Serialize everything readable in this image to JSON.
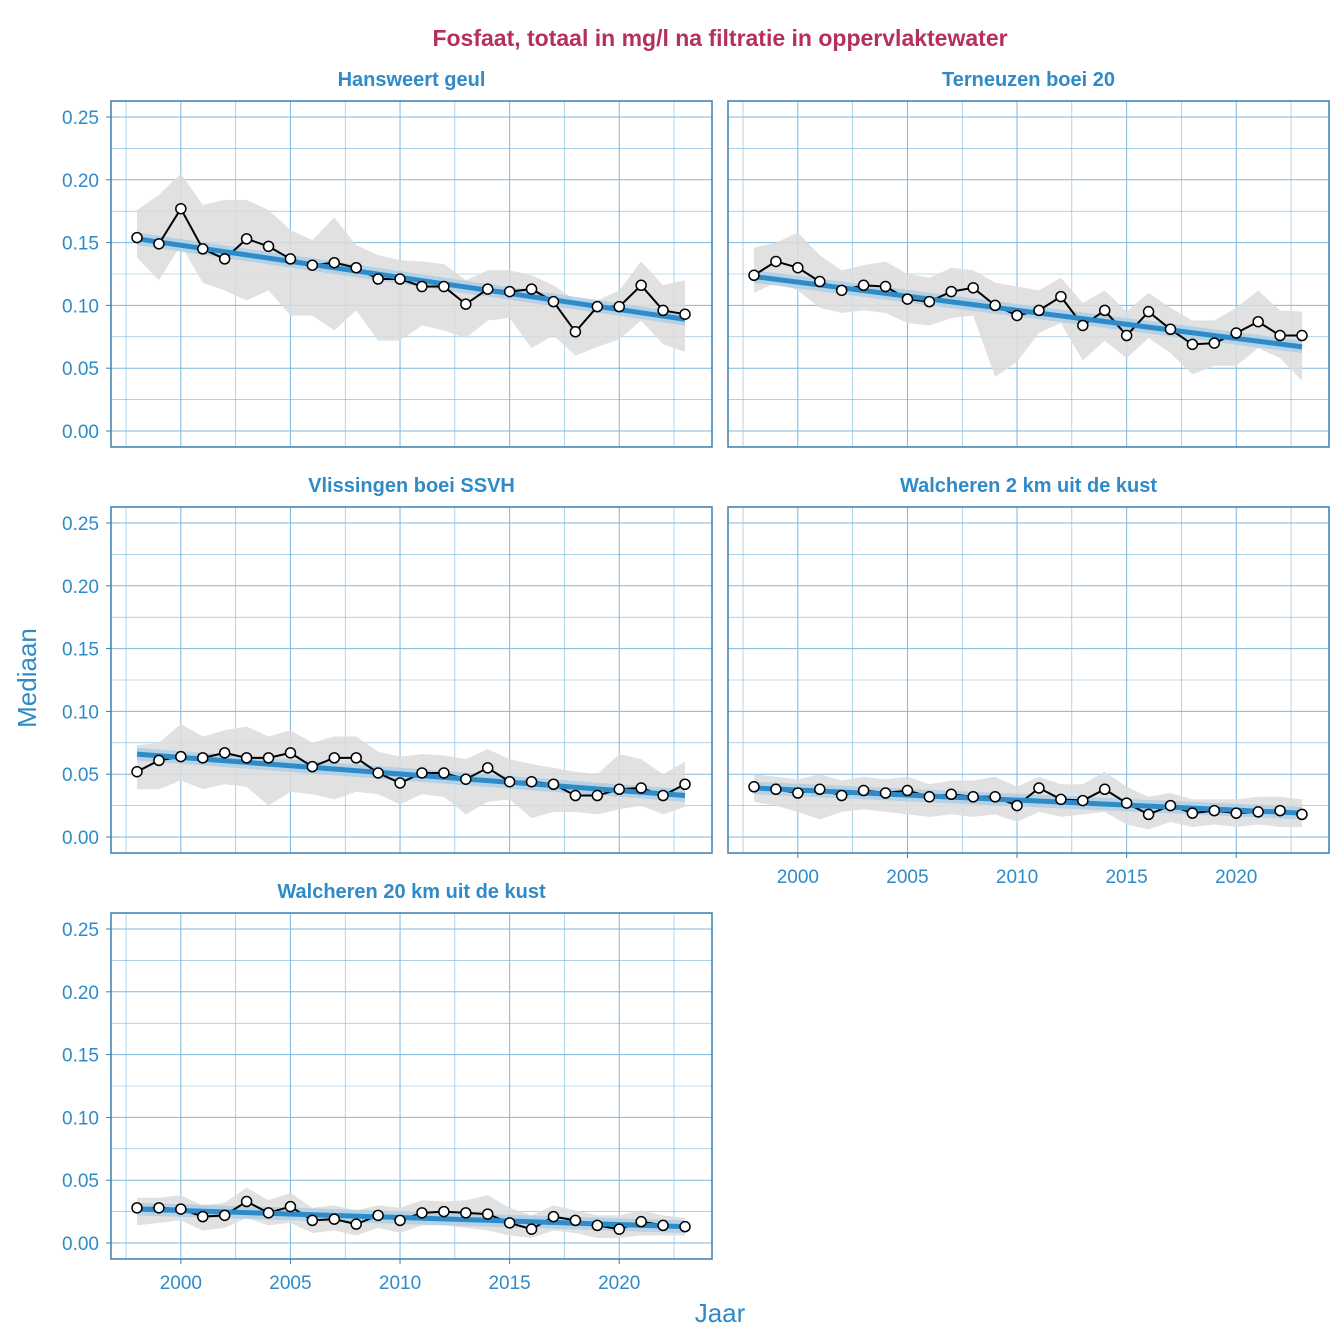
{
  "chart_data": {
    "type": "line",
    "title": "Fosfaat, totaal in mg/l na filtratie in oppervlaktewater",
    "xlabel": "Jaar",
    "ylabel": "Mediaan",
    "xlim": [
      1997,
      2024
    ],
    "ylim": [
      0,
      0.25
    ],
    "x_ticks": [
      2000,
      2005,
      2010,
      2015,
      2020
    ],
    "y_ticks": [
      "0.00",
      "0.05",
      "0.10",
      "0.15",
      "0.20",
      "0.25"
    ],
    "grid": true,
    "x": [
      1998,
      1999,
      2000,
      2001,
      2002,
      2003,
      2004,
      2005,
      2006,
      2007,
      2008,
      2009,
      2010,
      2011,
      2012,
      2013,
      2014,
      2015,
      2016,
      2017,
      2018,
      2019,
      2020,
      2021,
      2022,
      2023
    ],
    "colors": {
      "line": "#000000",
      "trend": "#2E8BC8",
      "ribbon": "#DCDCDC",
      "title": "#B5305A",
      "grid": "#7FB8DE"
    },
    "panels": [
      {
        "name": "Hansweert geul",
        "values": [
          0.154,
          0.149,
          0.177,
          0.145,
          0.137,
          0.153,
          0.147,
          0.137,
          0.132,
          0.134,
          0.13,
          0.121,
          0.121,
          0.115,
          0.115,
          0.101,
          0.113,
          0.111,
          0.113,
          0.103,
          0.079,
          0.099,
          0.099,
          0.116,
          0.096,
          0.093
        ],
        "upper": [
          0.176,
          0.188,
          0.205,
          0.18,
          0.184,
          0.184,
          0.176,
          0.16,
          0.152,
          0.17,
          0.148,
          0.14,
          0.136,
          0.135,
          0.133,
          0.12,
          0.128,
          0.128,
          0.124,
          0.116,
          0.104,
          0.104,
          0.112,
          0.135,
          0.116,
          0.12
        ],
        "lower": [
          0.138,
          0.12,
          0.148,
          0.118,
          0.112,
          0.104,
          0.112,
          0.092,
          0.092,
          0.08,
          0.096,
          0.072,
          0.072,
          0.084,
          0.08,
          0.074,
          0.088,
          0.09,
          0.066,
          0.076,
          0.06,
          0.067,
          0.073,
          0.088,
          0.069,
          0.063
        ],
        "trend": [
          0.153,
          0.089
        ]
      },
      {
        "name": "Terneuzen boei 20",
        "values": [
          0.124,
          0.135,
          0.13,
          0.119,
          0.112,
          0.116,
          0.115,
          0.105,
          0.103,
          0.111,
          0.114,
          0.1,
          0.092,
          0.096,
          0.107,
          0.084,
          0.096,
          0.076,
          0.095,
          0.081,
          0.069,
          0.07,
          0.078,
          0.087,
          0.076,
          0.076
        ],
        "upper": [
          0.146,
          0.15,
          0.158,
          0.14,
          0.128,
          0.132,
          0.135,
          0.125,
          0.122,
          0.13,
          0.128,
          0.118,
          0.115,
          0.112,
          0.122,
          0.102,
          0.112,
          0.095,
          0.11,
          0.098,
          0.088,
          0.088,
          0.098,
          0.112,
          0.096,
          0.095
        ],
        "lower": [
          0.11,
          0.118,
          0.112,
          0.098,
          0.094,
          0.096,
          0.094,
          0.086,
          0.084,
          0.09,
          0.092,
          0.043,
          0.055,
          0.078,
          0.086,
          0.056,
          0.072,
          0.058,
          0.074,
          0.062,
          0.045,
          0.052,
          0.052,
          0.066,
          0.058,
          0.04
        ],
        "trend": [
          0.123,
          0.067
        ]
      },
      {
        "name": "Vlissingen boei SSVH",
        "values": [
          0.052,
          0.061,
          0.064,
          0.063,
          0.067,
          0.063,
          0.063,
          0.067,
          0.056,
          0.063,
          0.063,
          0.051,
          0.043,
          0.051,
          0.051,
          0.046,
          0.055,
          0.044,
          0.044,
          0.042,
          0.033,
          0.033,
          0.038,
          0.039,
          0.033,
          0.042
        ],
        "upper": [
          0.073,
          0.075,
          0.09,
          0.08,
          0.085,
          0.088,
          0.08,
          0.085,
          0.075,
          0.08,
          0.08,
          0.068,
          0.064,
          0.066,
          0.065,
          0.062,
          0.07,
          0.062,
          0.058,
          0.055,
          0.052,
          0.05,
          0.066,
          0.062,
          0.05,
          0.06
        ],
        "lower": [
          0.038,
          0.038,
          0.045,
          0.038,
          0.042,
          0.04,
          0.025,
          0.036,
          0.034,
          0.03,
          0.036,
          0.034,
          0.026,
          0.034,
          0.032,
          0.018,
          0.028,
          0.03,
          0.015,
          0.02,
          0.02,
          0.018,
          0.022,
          0.025,
          0.018,
          0.024
        ],
        "trend": [
          0.066,
          0.033
        ]
      },
      {
        "name": "Walcheren 2 km uit de kust",
        "values": [
          0.04,
          0.038,
          0.035,
          0.038,
          0.033,
          0.037,
          0.035,
          0.037,
          0.032,
          0.034,
          0.032,
          0.032,
          0.025,
          0.039,
          0.03,
          0.029,
          0.038,
          0.027,
          0.018,
          0.025,
          0.019,
          0.021,
          0.019,
          0.02,
          0.021,
          0.018
        ],
        "upper": [
          0.05,
          0.048,
          0.046,
          0.05,
          0.045,
          0.048,
          0.046,
          0.048,
          0.042,
          0.045,
          0.045,
          0.048,
          0.04,
          0.048,
          0.042,
          0.042,
          0.052,
          0.04,
          0.032,
          0.035,
          0.03,
          0.03,
          0.03,
          0.032,
          0.032,
          0.03
        ],
        "lower": [
          0.028,
          0.025,
          0.02,
          0.014,
          0.02,
          0.022,
          0.02,
          0.018,
          0.016,
          0.018,
          0.016,
          0.018,
          0.012,
          0.02,
          0.016,
          0.018,
          0.02,
          0.01,
          0.006,
          0.012,
          0.008,
          0.01,
          0.008,
          0.01,
          0.008,
          0.008
        ],
        "trend": [
          0.039,
          0.019
        ]
      },
      {
        "name": "Walcheren 20 km uit de kust",
        "values": [
          0.028,
          0.028,
          0.027,
          0.021,
          0.022,
          0.033,
          0.024,
          0.029,
          0.018,
          0.019,
          0.015,
          0.022,
          0.018,
          0.024,
          0.025,
          0.024,
          0.023,
          0.016,
          0.011,
          0.021,
          0.018,
          0.014,
          0.011,
          0.017,
          0.014,
          0.013
        ],
        "upper": [
          0.036,
          0.036,
          0.038,
          0.03,
          0.032,
          0.044,
          0.034,
          0.04,
          0.028,
          0.03,
          0.026,
          0.03,
          0.028,
          0.034,
          0.033,
          0.034,
          0.038,
          0.028,
          0.022,
          0.03,
          0.026,
          0.022,
          0.022,
          0.026,
          0.022,
          0.02
        ],
        "lower": [
          0.014,
          0.016,
          0.018,
          0.01,
          0.012,
          0.02,
          0.014,
          0.016,
          0.008,
          0.01,
          0.006,
          0.012,
          0.008,
          0.014,
          0.014,
          0.012,
          0.01,
          0.006,
          0.004,
          0.01,
          0.008,
          0.004,
          0.004,
          0.006,
          0.006,
          0.006
        ],
        "trend": [
          0.027,
          0.013
        ]
      }
    ]
  }
}
